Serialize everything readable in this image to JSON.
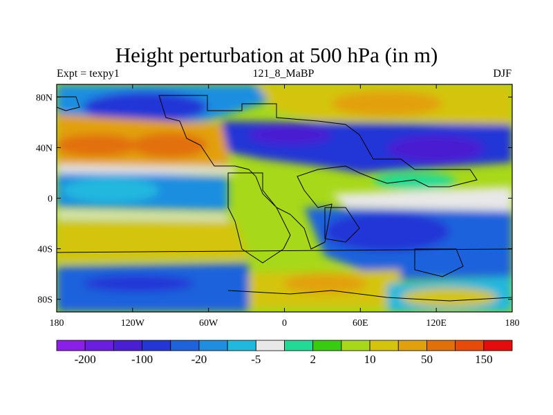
{
  "title": "Height perturbation at 500 hPa (in m)",
  "subtitle_left": "Expt = texpy1",
  "subtitle_center": "121_8_MaBP",
  "subtitle_right": "DJF",
  "axes": {
    "x_ticks": [
      "180",
      "120W",
      "60W",
      "0",
      "60E",
      "120E",
      "180"
    ],
    "x_values": [
      -180,
      -120,
      -60,
      0,
      60,
      120,
      180
    ],
    "y_ticks": [
      "80N",
      "40N",
      "0",
      "40S",
      "80S"
    ],
    "y_values": [
      80,
      40,
      0,
      -40,
      -80
    ],
    "lon_range": [
      -180,
      180
    ],
    "lat_range": [
      -90,
      90
    ]
  },
  "colorbar": {
    "colors": [
      "#8a1fe8",
      "#6a1fe0",
      "#4a1ed2",
      "#2436d6",
      "#1e62dc",
      "#1f8ee0",
      "#20b8de",
      "#e8e8e8",
      "#22d996",
      "#38cc10",
      "#a8d81a",
      "#d4c40c",
      "#e2a00c",
      "#e2700a",
      "#e84a0a",
      "#e40c0c"
    ],
    "labels": [
      "-200",
      "-100",
      "-20",
      "-5",
      "2",
      "10",
      "50",
      "150"
    ]
  },
  "chart_data": {
    "type": "heatmap",
    "title": "Height perturbation at 500 hPa (in m)",
    "xlabel": "",
    "ylabel": "",
    "xlim": [
      -180,
      180
    ],
    "ylim": [
      -90,
      90
    ],
    "levels": [
      -200,
      -150,
      -100,
      -50,
      -20,
      -10,
      -5,
      -2,
      2,
      5,
      10,
      20,
      50,
      100,
      150
    ],
    "bands": [
      {
        "lat": 80,
        "lon": [
          -150,
          -100
        ],
        "value": -90
      },
      {
        "lat": 40,
        "lon": [
          -170,
          -160
        ],
        "value": 130
      },
      {
        "lat": 40,
        "lon": [
          -90,
          -70
        ],
        "value": 130
      },
      {
        "lat": 40,
        "lon": [
          100,
          140
        ],
        "value": -150
      },
      {
        "lat": 80,
        "lon": [
          20,
          90
        ],
        "value": 80
      },
      {
        "lat": 0,
        "lon": [
          -170,
          -100
        ],
        "value": -20
      },
      {
        "lat": -40,
        "lon": [
          60,
          150
        ],
        "value": -50
      },
      {
        "lat": -40,
        "lon": [
          -150,
          -60
        ],
        "value": 60
      },
      {
        "lat": -70,
        "lon": [
          20,
          70
        ],
        "value": 90
      },
      {
        "lat": -80,
        "lon": [
          -170,
          -100
        ],
        "value": -50
      }
    ]
  }
}
